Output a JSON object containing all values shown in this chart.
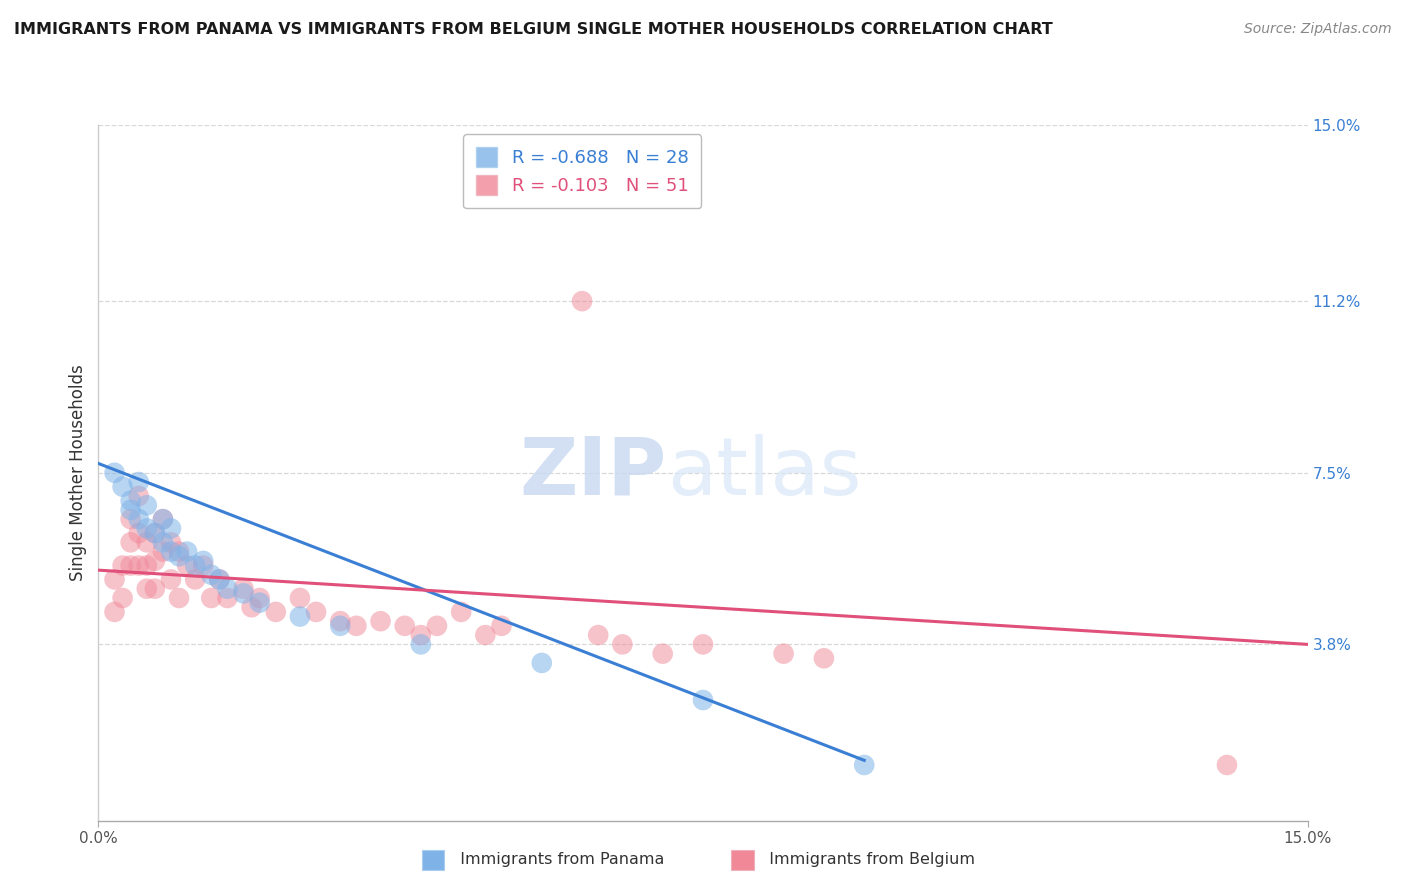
{
  "title": "IMMIGRANTS FROM PANAMA VS IMMIGRANTS FROM BELGIUM SINGLE MOTHER HOUSEHOLDS CORRELATION CHART",
  "source": "Source: ZipAtlas.com",
  "ylabel": "Single Mother Households",
  "xlim": [
    0.0,
    0.15
  ],
  "ylim": [
    0.0,
    0.15
  ],
  "y_tick_labels_right": [
    "15.0%",
    "11.2%",
    "7.5%",
    "3.8%"
  ],
  "y_tick_values_right": [
    0.15,
    0.112,
    0.075,
    0.038
  ],
  "legend_line1": "R = -0.688   N = 28",
  "legend_line2": "R = -0.103   N = 51",
  "color_panama": "#7fb3e8",
  "color_belgium": "#f08898",
  "color_line_panama": "#3a7fd4",
  "color_line_belgium": "#e0507a",
  "watermark_zip": "ZIP",
  "watermark_atlas": "atlas",
  "background_color": "#ffffff",
  "grid_color": "#d8d8d8",
  "panama_x": [
    0.002,
    0.003,
    0.004,
    0.004,
    0.005,
    0.005,
    0.006,
    0.006,
    0.007,
    0.008,
    0.008,
    0.009,
    0.009,
    0.01,
    0.011,
    0.012,
    0.013,
    0.014,
    0.015,
    0.016,
    0.018,
    0.02,
    0.025,
    0.03,
    0.04,
    0.055,
    0.075,
    0.095
  ],
  "panama_y": [
    0.075,
    0.072,
    0.069,
    0.067,
    0.073,
    0.065,
    0.068,
    0.063,
    0.062,
    0.065,
    0.06,
    0.063,
    0.058,
    0.057,
    0.058,
    0.055,
    0.056,
    0.053,
    0.052,
    0.05,
    0.049,
    0.047,
    0.044,
    0.042,
    0.038,
    0.034,
    0.026,
    0.012
  ],
  "belgium_x": [
    0.002,
    0.002,
    0.003,
    0.003,
    0.004,
    0.004,
    0.004,
    0.005,
    0.005,
    0.005,
    0.006,
    0.006,
    0.006,
    0.007,
    0.007,
    0.007,
    0.008,
    0.008,
    0.009,
    0.009,
    0.01,
    0.01,
    0.011,
    0.012,
    0.013,
    0.014,
    0.015,
    0.016,
    0.018,
    0.019,
    0.02,
    0.022,
    0.025,
    0.027,
    0.03,
    0.032,
    0.035,
    0.038,
    0.04,
    0.042,
    0.045,
    0.048,
    0.05,
    0.06,
    0.062,
    0.065,
    0.07,
    0.075,
    0.085,
    0.09,
    0.14
  ],
  "belgium_y": [
    0.052,
    0.045,
    0.055,
    0.048,
    0.065,
    0.06,
    0.055,
    0.07,
    0.062,
    0.055,
    0.06,
    0.055,
    0.05,
    0.062,
    0.056,
    0.05,
    0.065,
    0.058,
    0.06,
    0.052,
    0.058,
    0.048,
    0.055,
    0.052,
    0.055,
    0.048,
    0.052,
    0.048,
    0.05,
    0.046,
    0.048,
    0.045,
    0.048,
    0.045,
    0.043,
    0.042,
    0.043,
    0.042,
    0.04,
    0.042,
    0.045,
    0.04,
    0.042,
    0.112,
    0.04,
    0.038,
    0.036,
    0.038,
    0.036,
    0.035,
    0.012
  ],
  "panama_line_x": [
    0.0,
    0.095
  ],
  "panama_line_y": [
    0.077,
    0.013
  ],
  "belgium_line_x": [
    0.0,
    0.15
  ],
  "belgium_line_y": [
    0.054,
    0.038
  ]
}
